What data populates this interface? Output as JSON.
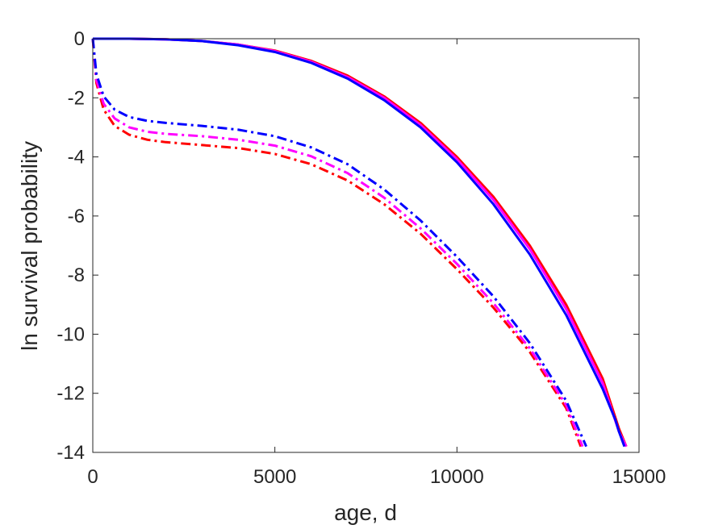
{
  "chart_data": {
    "type": "line",
    "title": "",
    "xlabel": "age, d",
    "ylabel": "ln survival probability",
    "xlim": [
      0,
      15000
    ],
    "ylim": [
      -14,
      0
    ],
    "xticks": [
      0,
      5000,
      10000,
      15000
    ],
    "yticks": [
      0,
      -2,
      -4,
      -6,
      -8,
      -10,
      -12,
      -14
    ],
    "grid": false,
    "legend": "none",
    "series": [
      {
        "color": "#ff0000",
        "style": "solid",
        "x": [
          0,
          1000,
          2000,
          3000,
          4000,
          5000,
          6000,
          7000,
          8000,
          9000,
          10000,
          11000,
          12000,
          13000,
          14000,
          14450,
          14650
        ],
        "y": [
          0,
          0,
          -0.02,
          -0.08,
          -0.2,
          -0.4,
          -0.75,
          -1.25,
          -1.95,
          -2.85,
          -4.0,
          -5.35,
          -7.0,
          -9.0,
          -11.5,
          -13.2,
          -13.8
        ]
      },
      {
        "color": "#ff00ff",
        "style": "solid",
        "x": [
          0,
          1000,
          2000,
          3000,
          4000,
          5000,
          6000,
          7000,
          8000,
          9000,
          10000,
          11000,
          12000,
          13000,
          14000,
          14450,
          14650
        ],
        "y": [
          0,
          0,
          -0.02,
          -0.08,
          -0.2,
          -0.42,
          -0.78,
          -1.3,
          -2.0,
          -2.92,
          -4.08,
          -5.45,
          -7.12,
          -9.15,
          -11.65,
          -13.3,
          -13.8
        ]
      },
      {
        "color": "#0000ff",
        "style": "solid",
        "x": [
          0,
          1000,
          2000,
          3000,
          4000,
          5000,
          6000,
          7000,
          8000,
          9000,
          10000,
          11000,
          12000,
          13000,
          14000,
          14350,
          14450,
          14600
        ],
        "y": [
          0,
          0,
          -0.02,
          -0.08,
          -0.22,
          -0.45,
          -0.82,
          -1.35,
          -2.08,
          -3.0,
          -4.18,
          -5.6,
          -7.3,
          -9.35,
          -11.85,
          -12.9,
          -13.3,
          -13.8
        ]
      },
      {
        "color": "#ff0000",
        "style": "dashdot",
        "x": [
          0,
          100,
          300,
          600,
          1000,
          1500,
          2000,
          3000,
          4000,
          5000,
          6000,
          7000,
          8000,
          9000,
          10000,
          11000,
          12000,
          13000,
          13400
        ],
        "y": [
          0,
          -1.5,
          -2.4,
          -2.95,
          -3.25,
          -3.42,
          -3.5,
          -3.6,
          -3.7,
          -3.9,
          -4.25,
          -4.8,
          -5.6,
          -6.6,
          -7.8,
          -9.1,
          -10.6,
          -12.5,
          -13.8
        ]
      },
      {
        "color": "#ff00ff",
        "style": "dashdot",
        "x": [
          0,
          100,
          300,
          600,
          1000,
          1500,
          2000,
          3000,
          4000,
          5000,
          6000,
          7000,
          8000,
          9000,
          10000,
          11000,
          12000,
          13000,
          13450
        ],
        "y": [
          0,
          -1.4,
          -2.2,
          -2.7,
          -3.0,
          -3.15,
          -3.22,
          -3.3,
          -3.42,
          -3.62,
          -3.98,
          -4.55,
          -5.38,
          -6.42,
          -7.62,
          -8.95,
          -10.48,
          -12.4,
          -13.8
        ]
      },
      {
        "color": "#0000ff",
        "style": "dashdot",
        "x": [
          0,
          100,
          300,
          600,
          1000,
          1500,
          2000,
          3000,
          4000,
          5000,
          6000,
          7000,
          8000,
          9000,
          10000,
          11000,
          12000,
          13000,
          13550
        ],
        "y": [
          0,
          -1.2,
          -1.95,
          -2.4,
          -2.65,
          -2.78,
          -2.85,
          -2.95,
          -3.08,
          -3.3,
          -3.68,
          -4.25,
          -5.1,
          -6.15,
          -7.38,
          -8.72,
          -10.3,
          -12.25,
          -13.8
        ]
      }
    ]
  }
}
